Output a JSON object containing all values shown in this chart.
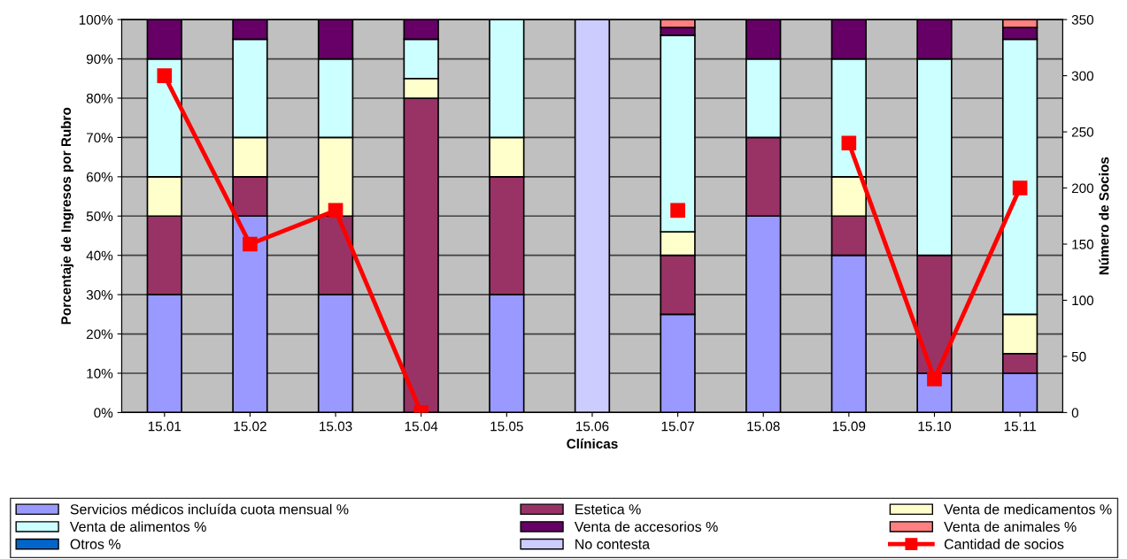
{
  "chart_data": {
    "type": "bar",
    "stacked": true,
    "xlabel": "Clínicas",
    "ylabel": "Porcentaje de Ingresos por Rubro",
    "y2label": "Número de Socios",
    "categories": [
      "15.01",
      "15.02",
      "15.03",
      "15.04",
      "15.05",
      "15.06",
      "15.07",
      "15.08",
      "15.09",
      "15.10",
      "15.11"
    ],
    "series": [
      {
        "name": "Servicios médicos incluída cuota mensual %",
        "color": "#9999ff",
        "values": [
          30,
          50,
          30,
          0,
          30,
          0,
          25,
          50,
          40,
          10,
          10
        ]
      },
      {
        "name": "Estetica %",
        "color": "#993366",
        "values": [
          20,
          10,
          20,
          80,
          30,
          0,
          15,
          20,
          10,
          30,
          5
        ]
      },
      {
        "name": "Venta de medicamentos %",
        "color": "#ffffcc",
        "values": [
          10,
          10,
          20,
          5,
          10,
          0,
          6,
          0,
          10,
          0,
          10
        ]
      },
      {
        "name": "Venta de alimentos %",
        "color": "#ccffff",
        "values": [
          30,
          25,
          20,
          10,
          30,
          0,
          50,
          20,
          30,
          50,
          70
        ]
      },
      {
        "name": "Venta de accesorios %",
        "color": "#660066",
        "values": [
          10,
          5,
          10,
          5,
          0,
          0,
          2,
          10,
          10,
          10,
          3
        ]
      },
      {
        "name": "Venta de animales %",
        "color": "#ff8080",
        "values": [
          0,
          0,
          0,
          0,
          0,
          0,
          2,
          0,
          0,
          0,
          2
        ]
      },
      {
        "name": "Otros %",
        "color": "#0066cc",
        "values": [
          0,
          0,
          0,
          0,
          0,
          0,
          0,
          0,
          0,
          0,
          0
        ]
      },
      {
        "name": "No contesta",
        "color": "#ccccff",
        "values": [
          0,
          0,
          0,
          0,
          0,
          100,
          0,
          0,
          0,
          0,
          0
        ]
      },
      {
        "name": "Cantidad de socios",
        "type": "line",
        "axis": "y2",
        "color": "#ff0000",
        "marker": "square",
        "values": [
          300,
          150,
          180,
          0,
          null,
          null,
          180,
          null,
          240,
          30,
          200
        ]
      }
    ],
    "ylim": [
      0,
      100
    ],
    "yticks": [
      {
        "value": 0,
        "label": "0%"
      },
      {
        "value": 10,
        "label": "10%"
      },
      {
        "value": 20,
        "label": "20%"
      },
      {
        "value": 30,
        "label": "30%"
      },
      {
        "value": 40,
        "label": "40%"
      },
      {
        "value": 50,
        "label": "50%"
      },
      {
        "value": 60,
        "label": "60%"
      },
      {
        "value": 70,
        "label": "70%"
      },
      {
        "value": 80,
        "label": "80%"
      },
      {
        "value": 90,
        "label": "90%"
      },
      {
        "value": 100,
        "label": "100%"
      }
    ],
    "y2lim": [
      0,
      350
    ],
    "y2ticks": [
      0,
      50,
      100,
      150,
      200,
      250,
      300,
      350
    ],
    "grid": "y",
    "legend": "bottom"
  }
}
